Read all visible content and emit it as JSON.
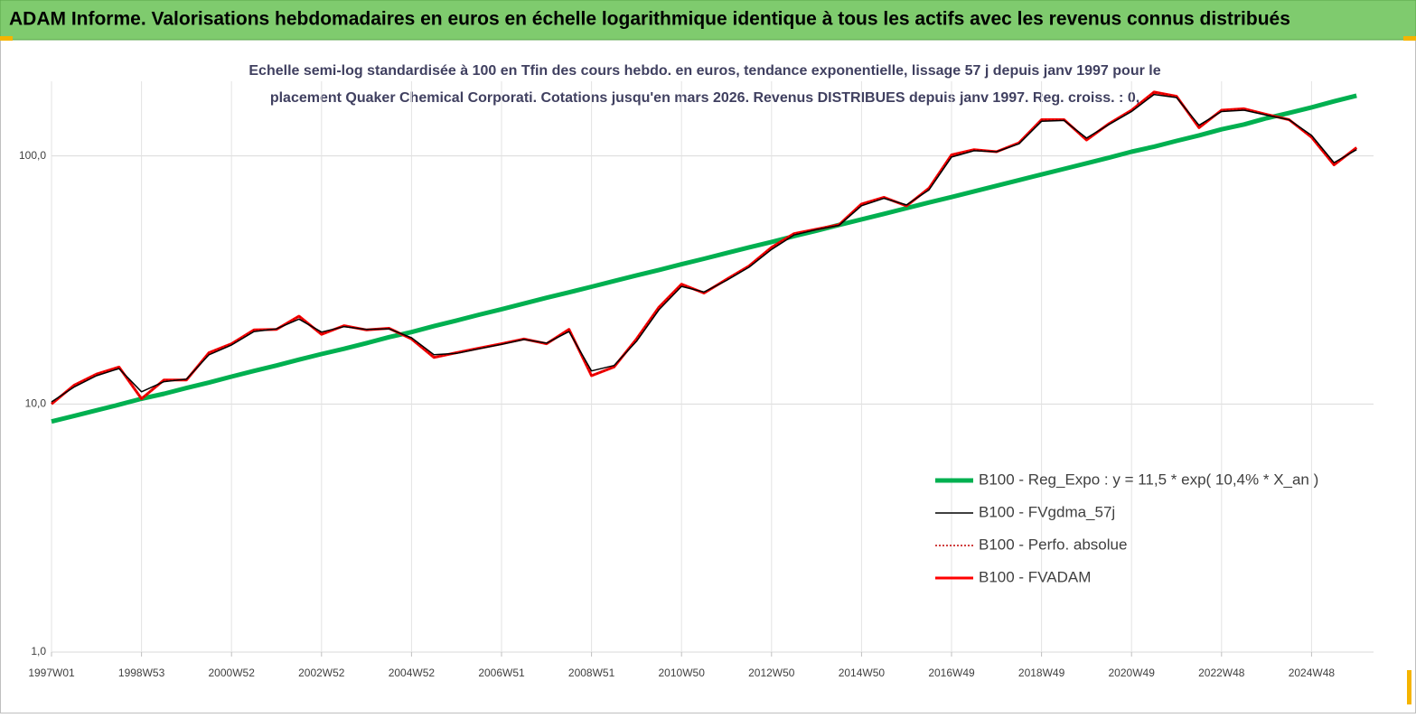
{
  "chart_data": {
    "type": "line",
    "title": "ADAM Informe. Valorisations hebdomadaires en euros en échelle logarithmique identique à tous les actifs avec les revenus connus distribués",
    "subtitle": [
      "Echelle semi-log standardisée à 100 en Tfin des cours hebdo. en euros, tendance exponentielle, lissage 57 j depuis janv 1997 pour le",
      "placement Quaker Chemical Corporati. Cotations jusqu'en mars 2026. Revenus DISTRIBUES depuis janv 1997. Reg. croiss. : 0,"
    ],
    "log_scale": true,
    "grid": true,
    "legend_position": "right",
    "ylim": [
      1,
      200
    ],
    "yticks": [
      {
        "value": 1,
        "label": "1,0"
      },
      {
        "value": 10,
        "label": "10,0"
      },
      {
        "value": 100,
        "label": "100,0"
      }
    ],
    "categories": [
      "1997W01",
      null,
      null,
      null,
      "1998W53",
      null,
      null,
      null,
      "2000W52",
      null,
      null,
      null,
      "2002W52",
      null,
      null,
      null,
      "2004W52",
      null,
      null,
      null,
      "2006W51",
      null,
      null,
      null,
      "2008W51",
      null,
      null,
      null,
      "2010W50",
      null,
      null,
      null,
      "2012W50",
      null,
      null,
      null,
      "2014W50",
      null,
      null,
      null,
      "2016W49",
      null,
      null,
      null,
      "2018W49",
      null,
      null,
      null,
      "2020W49",
      null,
      null,
      null,
      "2022W48",
      null,
      null,
      null,
      "2024W48",
      null,
      null
    ],
    "series": [
      {
        "name": "B100 - Reg_Expo : y = 11,5 * exp( 10,4% *  X_an )",
        "color": "#00b050",
        "width": 5,
        "dash": "solid",
        "values": [
          8.5,
          8.95,
          9.43,
          9.94,
          10.5,
          11.0,
          11.6,
          12.2,
          12.9,
          13.6,
          14.3,
          15.1,
          15.9,
          16.7,
          17.6,
          18.6,
          19.5,
          20.6,
          21.7,
          22.9,
          24.1,
          25.4,
          26.8,
          28.2,
          29.7,
          31.3,
          33.0,
          34.7,
          36.6,
          38.5,
          40.6,
          42.8,
          45.0,
          47.5,
          50.0,
          52.7,
          55.5,
          58.4,
          61.6,
          64.9,
          68.3,
          72.0,
          75.8,
          79.9,
          84.2,
          88.7,
          93.4,
          98.4,
          104,
          109,
          115,
          121,
          128,
          134,
          142,
          149,
          157,
          166,
          175
        ]
      },
      {
        "name": "B100 - FVgdma_57j",
        "color": "#000000",
        "width": 1.5,
        "dash": "solid",
        "values": [
          10.2,
          11.7,
          13.0,
          13.9,
          11.2,
          12.3,
          12.6,
          15.8,
          17.3,
          19.6,
          20.1,
          22.0,
          19.5,
          20.5,
          20.0,
          20.1,
          18.5,
          15.8,
          16.0,
          16.7,
          17.4,
          18.2,
          17.6,
          19.6,
          13.6,
          14.3,
          17.9,
          24.0,
          29.8,
          28.3,
          31.5,
          35.6,
          42.0,
          48.0,
          50.5,
          52.5,
          63.0,
          67.5,
          63.5,
          73.0,
          99.0,
          105,
          104,
          112,
          138,
          139,
          118,
          134,
          151,
          177,
          172,
          133,
          151,
          153,
          146,
          140,
          121,
          94,
          106
        ]
      },
      {
        "name": "B100 - Perfo. absolue",
        "color": "#c00000",
        "width": 1.5,
        "dash": "dotted",
        "values": [
          10,
          11.9,
          13.2,
          14.1,
          10.5,
          12.5,
          12.5,
          16.1,
          17.5,
          19.9,
          20,
          22.6,
          19.1,
          20.7,
          19.9,
          20.2,
          18.3,
          15.4,
          16.1,
          16.8,
          17.5,
          18.3,
          17.5,
          20,
          13,
          14.1,
          18.3,
          24.6,
          30.4,
          28,
          31.8,
          36,
          42.8,
          48.6,
          50.7,
          52.8,
          64,
          68.1,
          62.9,
          74.2,
          101,
          106,
          104,
          113,
          140,
          140,
          116,
          135,
          153,
          181,
          174,
          130,
          153,
          155,
          147,
          140,
          119,
          92,
          108
        ]
      },
      {
        "name": "B100 - FVADAM",
        "color": "#ff0000",
        "width": 3,
        "dash": "solid",
        "values": [
          10,
          11.9,
          13.2,
          14.1,
          10.5,
          12.5,
          12.5,
          16.1,
          17.5,
          19.9,
          20,
          22.6,
          19.1,
          20.7,
          19.9,
          20.2,
          18.3,
          15.4,
          16.1,
          16.8,
          17.5,
          18.3,
          17.5,
          20,
          13,
          14.1,
          18.3,
          24.6,
          30.4,
          28,
          31.8,
          36,
          42.8,
          48.6,
          50.7,
          52.8,
          64,
          68.1,
          62.9,
          74.2,
          101,
          106,
          104,
          113,
          140,
          140,
          116,
          135,
          153,
          181,
          174,
          130,
          153,
          155,
          147,
          140,
          119,
          92,
          108
        ]
      }
    ]
  }
}
